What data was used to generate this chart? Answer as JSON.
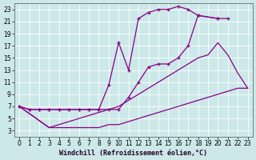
{
  "background_color": "#cce8e8",
  "grid_color": "#ffffff",
  "line_color": "#880088",
  "xlabel": "Windchill (Refroidissement éolien,°C)",
  "xlabel_fontsize": 6.0,
  "xticks": [
    0,
    1,
    2,
    3,
    4,
    5,
    6,
    7,
    8,
    9,
    10,
    11,
    12,
    13,
    14,
    15,
    16,
    17,
    18,
    19,
    20,
    21,
    22,
    23
  ],
  "yticks": [
    3,
    5,
    7,
    9,
    11,
    13,
    15,
    17,
    19,
    21,
    23
  ],
  "xlim": [
    -0.5,
    23.5
  ],
  "ylim": [
    2.0,
    24.0
  ],
  "tick_fontsize": 5.5,
  "curve1_x": [
    0,
    1,
    2,
    3,
    4,
    5,
    6,
    7,
    8,
    9,
    10,
    11,
    12,
    13,
    14,
    15,
    16,
    17,
    18,
    20,
    21
  ],
  "curve1_y": [
    7,
    6.5,
    6.5,
    6.5,
    6.5,
    6.5,
    6.5,
    6.5,
    6.5,
    6.5,
    6.5,
    8.5,
    11,
    13.5,
    14,
    14,
    15,
    17,
    22,
    21.5,
    21.5
  ],
  "curve2_x": [
    0,
    1,
    2,
    3,
    4,
    5,
    6,
    7,
    8,
    9,
    10,
    11,
    12,
    13,
    14,
    15,
    16,
    17,
    18,
    20
  ],
  "curve2_y": [
    7,
    6.5,
    6.5,
    6.5,
    6.5,
    6.5,
    6.5,
    6.5,
    6.5,
    10.5,
    17.5,
    13,
    21.5,
    22.5,
    23,
    23,
    23.5,
    23,
    22,
    21.5
  ],
  "curve3_x": [
    0,
    3,
    4,
    5,
    6,
    7,
    8,
    9,
    10,
    11,
    12,
    13,
    14,
    15,
    16,
    17,
    18,
    19,
    20,
    21,
    22,
    23
  ],
  "curve3_y": [
    7,
    3.5,
    4,
    4.5,
    5,
    5.5,
    6,
    6.5,
    7,
    8,
    9,
    10,
    11,
    12,
    13,
    14,
    15,
    15.5,
    17.5,
    15.5,
    12.5,
    10
  ],
  "curve4_x": [
    0,
    3,
    4,
    5,
    6,
    7,
    8,
    9,
    10,
    11,
    12,
    13,
    14,
    15,
    16,
    17,
    18,
    19,
    20,
    21,
    22,
    23
  ],
  "curve4_y": [
    7,
    3.5,
    3.5,
    3.5,
    3.5,
    3.5,
    3.5,
    4,
    4,
    4.5,
    5,
    5.5,
    6,
    6.5,
    7,
    7.5,
    8,
    8.5,
    9,
    9.5,
    10,
    10
  ]
}
